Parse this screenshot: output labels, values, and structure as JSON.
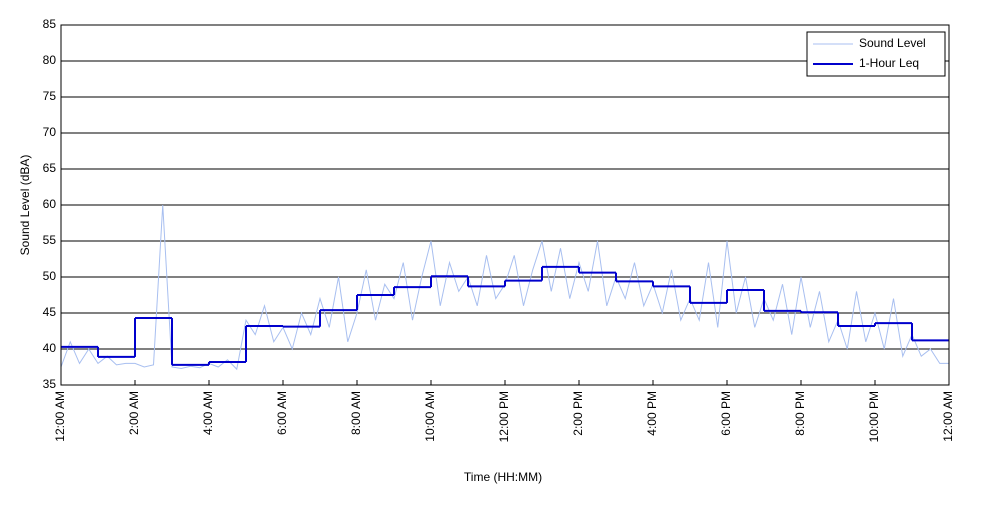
{
  "chart_data": {
    "type": "line",
    "xlabel": "Time (HH:MM)",
    "ylabel": "Sound Level (dBA)",
    "xlim": [
      0,
      24
    ],
    "ylim": [
      35,
      85
    ],
    "xticks": [
      {
        "value": 0,
        "label": "12:00 AM"
      },
      {
        "value": 2,
        "label": "2:00 AM"
      },
      {
        "value": 4,
        "label": "4:00 AM"
      },
      {
        "value": 6,
        "label": "6:00 AM"
      },
      {
        "value": 8,
        "label": "8:00 AM"
      },
      {
        "value": 10,
        "label": "10:00 AM"
      },
      {
        "value": 12,
        "label": "12:00 PM"
      },
      {
        "value": 14,
        "label": "2:00 PM"
      },
      {
        "value": 16,
        "label": "4:00 PM"
      },
      {
        "value": 18,
        "label": "6:00 PM"
      },
      {
        "value": 20,
        "label": "8:00 PM"
      },
      {
        "value": 22,
        "label": "10:00 PM"
      },
      {
        "value": 24,
        "label": "12:00 AM"
      }
    ],
    "yticks": [
      35,
      40,
      45,
      50,
      55,
      60,
      65,
      70,
      75,
      80,
      85
    ],
    "grid": true,
    "legend": "upper right",
    "series": [
      {
        "name": "Sound Level",
        "color": "#a8bff0",
        "style": "line",
        "x": [
          0,
          0.25,
          0.5,
          0.75,
          1,
          1.25,
          1.5,
          1.75,
          2,
          2.25,
          2.5,
          2.75,
          3,
          3.25,
          3.5,
          3.75,
          4,
          4.25,
          4.5,
          4.75,
          5,
          5.25,
          5.5,
          5.75,
          6,
          6.25,
          6.5,
          6.75,
          7,
          7.25,
          7.5,
          7.75,
          8,
          8.25,
          8.5,
          8.75,
          9,
          9.25,
          9.5,
          9.75,
          10,
          10.25,
          10.5,
          10.75,
          11,
          11.25,
          11.5,
          11.75,
          12,
          12.25,
          12.5,
          12.75,
          13,
          13.25,
          13.5,
          13.75,
          14,
          14.25,
          14.5,
          14.75,
          15,
          15.25,
          15.5,
          15.75,
          16,
          16.25,
          16.5,
          16.75,
          17,
          17.25,
          17.5,
          17.75,
          18,
          18.25,
          18.5,
          18.75,
          19,
          19.25,
          19.5,
          19.75,
          20,
          20.25,
          20.5,
          20.75,
          21,
          21.25,
          21.5,
          21.75,
          22,
          22.25,
          22.5,
          22.75,
          23,
          23.25,
          23.5,
          23.75,
          24
        ],
        "values": [
          37.5,
          41,
          38,
          40,
          38,
          39,
          37.8,
          38,
          38,
          37.5,
          37.8,
          60,
          37.5,
          37.3,
          37.6,
          37.4,
          38,
          37.5,
          38.5,
          37.2,
          44,
          42,
          46,
          41,
          43,
          40,
          45,
          42,
          47,
          43,
          50,
          41,
          45,
          51,
          44,
          49,
          47,
          52,
          44,
          50,
          55,
          46,
          52,
          48,
          50,
          46,
          53,
          47,
          49,
          53,
          46,
          51,
          55,
          48,
          54,
          47,
          52,
          48,
          55,
          46,
          50,
          47,
          52,
          46,
          49,
          45,
          51,
          44,
          47,
          44,
          52,
          43,
          55,
          45,
          50,
          43,
          47,
          44,
          49,
          42,
          50,
          43,
          48,
          41,
          44,
          40,
          48,
          41,
          45,
          40,
          47,
          39,
          42,
          39,
          40,
          38,
          38
        ]
      },
      {
        "name": "1-Hour Leq",
        "color": "#0000cc",
        "style": "step",
        "x": [
          0,
          1,
          2,
          3,
          4,
          5,
          6,
          7,
          8,
          9,
          10,
          11,
          12,
          13,
          14,
          15,
          16,
          17,
          18,
          19,
          20,
          21,
          22,
          23
        ],
        "values": [
          40.3,
          38.9,
          44.3,
          37.8,
          38.2,
          43.2,
          43.1,
          45.4,
          47.5,
          48.6,
          50.1,
          48.7,
          49.5,
          51.4,
          50.6,
          49.4,
          48.7,
          46.4,
          48.2,
          45.3,
          45.1,
          43.2,
          43.6,
          41.2
        ]
      }
    ]
  }
}
